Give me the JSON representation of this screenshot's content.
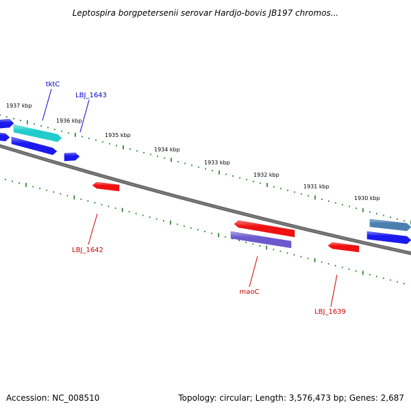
{
  "title": "Leptospira borgpetersenii serovar Hardjo-bovis JB197 chromos...",
  "footer": {
    "accession": "Accession: NC_008510",
    "topology": "Topology: circular; Length: 3,576,473 bp; Genes: 2,687"
  },
  "colors": {
    "backbone": "#7a7a7a",
    "tick": "#1a7a1a",
    "forward_label": "#0000cc",
    "reverse_label": "#cc0000"
  },
  "scale_labels": [
    "1937 kbp",
    "1936 kbp",
    "1935 kbp",
    "1934 kbp",
    "1933 kbp",
    "1932 kbp",
    "1931 kbp",
    "1930 kbp"
  ],
  "genes": [
    {
      "label": "tktC",
      "color": "#22cccc",
      "strand": "forward"
    },
    {
      "label": "LBJ_1643",
      "color": "#1a1aee",
      "strand": "forward"
    },
    {
      "label": "",
      "color": "#1a1aee",
      "strand": "forward"
    },
    {
      "label": "",
      "color": "#1a1aee",
      "strand": "forward"
    },
    {
      "label": "",
      "color": "#1a1aee",
      "strand": "forward"
    },
    {
      "label": "",
      "color": "#4a7fb0",
      "strand": "forward"
    },
    {
      "label": "",
      "color": "#1a1aee",
      "strand": "forward"
    },
    {
      "label": "LBJ_1642",
      "color": "#ee1111",
      "strand": "reverse"
    },
    {
      "label": "",
      "color": "#ee1111",
      "strand": "reverse"
    },
    {
      "label": "maoC",
      "color": "#6a5acd",
      "strand": "reverse"
    },
    {
      "label": "LBJ_1639",
      "color": "#ee1111",
      "strand": "reverse"
    }
  ]
}
